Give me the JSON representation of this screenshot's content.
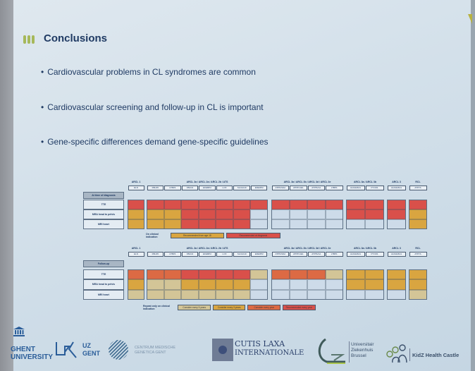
{
  "slide": {
    "title": "Conclusions",
    "bullets": [
      "Cardiovascular problems in CL syndromes are common",
      "Cardiovascular screening and follow-up in CL is important",
      "Gene-specific differences demand gene-specific guidelines"
    ]
  },
  "colors": {
    "red": "#d9504a",
    "orange_red": "#dc6a44",
    "orange": "#d9a540",
    "tan": "#d3c597",
    "light_blue": "#cddbe9"
  },
  "table_diagnosis": {
    "header_label": "At time of diagnosis",
    "row_labels": [
      "TTE",
      "MRA head to pelvis",
      "MRI heart"
    ],
    "groups": [
      {
        "label": "ARCL 1",
        "genes": [
          "ELN"
        ]
      },
      {
        "label": "ARCL 2a / ARCL 2a / ARCL 2b / ATS",
        "genes": [
          "FBLN5",
          "LTBP4",
          "FBLN4",
          "EFEMP2",
          "LOX",
          "SLC2A10",
          "EFEMP2"
        ]
      },
      {
        "label": "ARCL 3a / ARCL 3b / ARCL 3d / ARCL 3e",
        "genes": [
          "ATP6V0A2",
          "ATP6V1E1",
          "ATP6V1A",
          "LTBP1"
        ]
      },
      {
        "label": "ARCL 3a / ARCL 3b",
        "genes": [
          "ALDH18A1",
          "PYCR1"
        ]
      },
      {
        "label": "ARCL 3",
        "genes": [
          "ALDH18A1"
        ]
      },
      {
        "label": "RCL",
        "genes": [
          "ATP7A"
        ]
      }
    ],
    "cells": [
      [
        [
          "red"
        ],
        [
          "red",
          "red",
          "red",
          "red",
          "red",
          "red",
          "red"
        ],
        [
          "red",
          "red",
          "red",
          "red"
        ],
        [
          "red",
          "red"
        ],
        [
          "red"
        ],
        [
          "red"
        ]
      ],
      [
        [
          "orange"
        ],
        [
          "orange",
          "orange",
          "red",
          "red",
          "red",
          "red",
          "light_blue"
        ],
        [
          "light_blue",
          "light_blue",
          "light_blue",
          "light_blue"
        ],
        [
          "red",
          "red"
        ],
        [
          "red"
        ],
        [
          "orange"
        ]
      ],
      [
        [
          "orange"
        ],
        [
          "orange",
          "orange",
          "red",
          "red",
          "red",
          "red",
          "light_blue"
        ],
        [
          "light_blue",
          "light_blue",
          "light_blue",
          "light_blue"
        ],
        [
          "light_blue",
          "light_blue"
        ],
        [
          "light_blue"
        ],
        [
          "orange"
        ]
      ]
    ],
    "legend": [
      {
        "label": "On clinical indication",
        "color": null
      },
      {
        "label": "Recommended from age 18",
        "color": "orange"
      },
      {
        "label": "Recommended at diagnosis",
        "color": "red"
      }
    ]
  },
  "table_followup": {
    "header_label": "Follow-up",
    "row_labels": [
      "TTE",
      "MRA head to pelvis",
      "MRI heart"
    ],
    "groups": [
      {
        "label": "ARCL 1",
        "genes": [
          "ELN"
        ]
      },
      {
        "label": "ARCL 2a / ARCL 2a / ARCL 2b / ATS",
        "genes": [
          "FBLN5",
          "LTBP4",
          "FBLN4",
          "EFEMP2",
          "LOX",
          "SLC2A10",
          "EFEMP2"
        ]
      },
      {
        "label": "ARCL 3a / ARCL 3b / ARCL 3d / ARCL 3e",
        "genes": [
          "ATP6V0A2",
          "ATP6V1E1",
          "ATP6V1A",
          "LTBP1"
        ]
      },
      {
        "label": "ARCL 3a / ARCL 3b",
        "genes": [
          "ALDH18A1",
          "PYCR1"
        ]
      },
      {
        "label": "ARCL 3",
        "genes": [
          "ALDH18A1"
        ]
      },
      {
        "label": "RCL",
        "genes": [
          "ATP7A"
        ]
      }
    ],
    "cells": [
      [
        [
          "orange_red"
        ],
        [
          "orange_red",
          "orange_red",
          "red",
          "red",
          "red",
          "red",
          "tan"
        ],
        [
          "orange_red",
          "orange_red",
          "orange_red",
          "tan"
        ],
        [
          "orange",
          "orange"
        ],
        [
          "orange"
        ],
        [
          "orange"
        ]
      ],
      [
        [
          "orange"
        ],
        [
          "tan",
          "tan",
          "orange",
          "orange",
          "orange",
          "orange",
          "light_blue"
        ],
        [
          "light_blue",
          "light_blue",
          "light_blue",
          "light_blue"
        ],
        [
          "orange",
          "orange"
        ],
        [
          "orange"
        ],
        [
          "orange"
        ]
      ],
      [
        [
          "tan"
        ],
        [
          "tan",
          "tan",
          "tan",
          "tan",
          "tan",
          "tan",
          "light_blue"
        ],
        [
          "light_blue",
          "light_blue",
          "light_blue",
          "light_blue"
        ],
        [
          "light_blue",
          "light_blue"
        ],
        [
          "light_blue"
        ],
        [
          "tan"
        ]
      ]
    ],
    "legend": [
      {
        "label": "Repeat only on clinical indication",
        "color": null
      },
      {
        "label": "Consider every 5 years",
        "color": "tan"
      },
      {
        "label": "Consider every 3 years",
        "color": "orange"
      },
      {
        "label": "Consider every year",
        "color": "orange_red"
      },
      {
        "label": "Recommended every year",
        "color": "red"
      }
    ]
  },
  "logos": {
    "ghent": [
      "GHENT",
      "UNIVERSITY"
    ],
    "uz_gent": [
      "UZ",
      "GENT"
    ],
    "cmg": [
      "CENTRUM MEDISCHE",
      "GENETICA GENT"
    ],
    "cutis": [
      "CUTIS LAXA",
      "INTERNATIONALE"
    ],
    "uzb": [
      "Universitair",
      "Ziekenhuis",
      "Brussel"
    ],
    "kidz": "KidZ Health Castle"
  }
}
